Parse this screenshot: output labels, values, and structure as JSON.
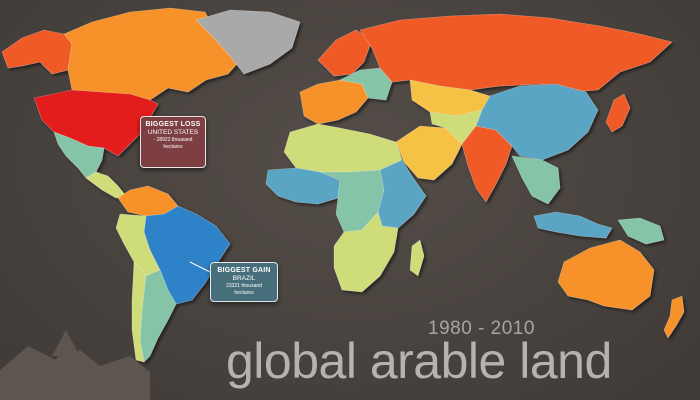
{
  "title": {
    "main": "global arable land",
    "years": "1980 - 2010"
  },
  "callouts": {
    "loss": {
      "heading": "BIGGEST LOSS",
      "country": "UNITED STATES",
      "value_line1": "- 28922 thousand",
      "value_line2": "hectares",
      "color": "#7d3f42"
    },
    "gain": {
      "heading": "BIGGEST GAIN",
      "country": "BRAZIL",
      "value_line1": "23321 thousand",
      "value_line2": "hectares",
      "color": "#466f7b"
    }
  },
  "legend_colors": {
    "large_loss": "#e31a1c",
    "loss": "#f05a28",
    "slight_loss": "#f7922b",
    "small_change_warm": "#f5c244",
    "neutral": "#cfdc7a",
    "small_gain": "#86c4a7",
    "gain": "#5aa5c3",
    "large_gain": "#2f82c8",
    "no_data": "#a9a9a9",
    "background": "#4a4440"
  },
  "regions": [
    {
      "name": "alaska",
      "category": "loss"
    },
    {
      "name": "canada",
      "category": "slight_loss"
    },
    {
      "name": "greenland",
      "category": "no_data"
    },
    {
      "name": "united-states",
      "category": "large_loss"
    },
    {
      "name": "mexico",
      "category": "small_gain"
    },
    {
      "name": "central-america",
      "category": "neutral"
    },
    {
      "name": "colombia-venezuela",
      "category": "slight_loss"
    },
    {
      "name": "brazil",
      "category": "large_gain"
    },
    {
      "name": "peru-bolivia",
      "category": "neutral"
    },
    {
      "name": "argentina",
      "category": "small_gain"
    },
    {
      "name": "chile",
      "category": "neutral"
    },
    {
      "name": "europe-west",
      "category": "slight_loss"
    },
    {
      "name": "europe-east",
      "category": "small_gain"
    },
    {
      "name": "scandinavia",
      "category": "loss"
    },
    {
      "name": "russia",
      "category": "loss"
    },
    {
      "name": "north-africa",
      "category": "neutral"
    },
    {
      "name": "west-africa",
      "category": "gain"
    },
    {
      "name": "central-africa",
      "category": "small_gain"
    },
    {
      "name": "east-africa",
      "category": "gain"
    },
    {
      "name": "southern-africa",
      "category": "neutral"
    },
    {
      "name": "madagascar",
      "category": "neutral"
    },
    {
      "name": "middle-east",
      "category": "small_change_warm"
    },
    {
      "name": "kazakhstan",
      "category": "small_change_warm"
    },
    {
      "name": "central-asia",
      "category": "neutral"
    },
    {
      "name": "india",
      "category": "loss"
    },
    {
      "name": "china",
      "category": "gain"
    },
    {
      "name": "southeast-asia",
      "category": "small_gain"
    },
    {
      "name": "japan",
      "category": "loss"
    },
    {
      "name": "indonesia",
      "category": "gain"
    },
    {
      "name": "papua",
      "category": "small_gain"
    },
    {
      "name": "australia",
      "category": "slight_loss"
    },
    {
      "name": "new-zealand",
      "category": "slight_loss"
    }
  ]
}
